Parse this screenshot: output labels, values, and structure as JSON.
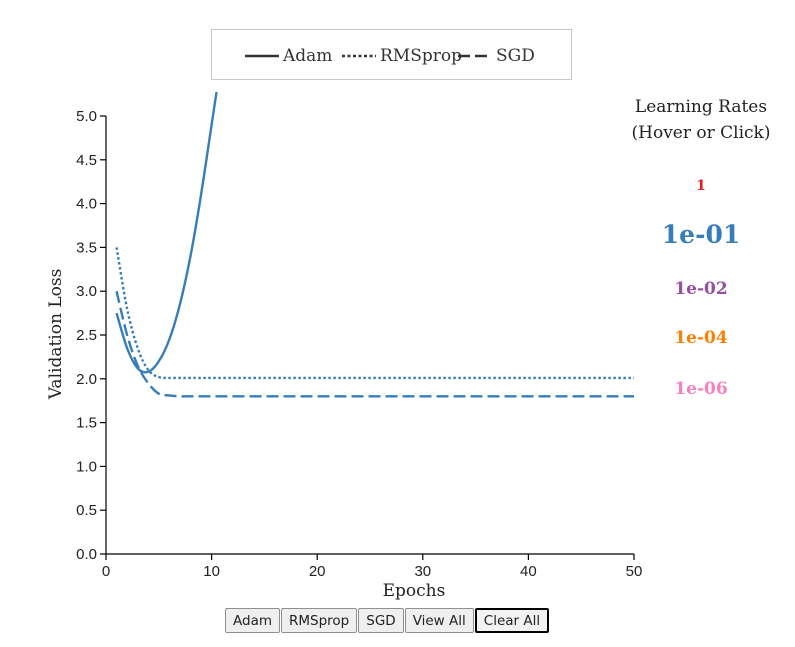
{
  "legend": {
    "items": [
      {
        "label": "Adam",
        "dash": "solid"
      },
      {
        "label": "RMSprop",
        "dash": "dotted"
      },
      {
        "label": "SGD",
        "dash": "dashed"
      }
    ]
  },
  "lr_panel": {
    "title_line1": "Learning Rates",
    "title_line2": "(Hover or Click)",
    "items": [
      {
        "label": "1",
        "color": "#e41a1c",
        "selected": false
      },
      {
        "label": "1e-01",
        "color": "#377eb8",
        "selected": true
      },
      {
        "label": "1e-02",
        "color": "#984ea3",
        "selected": false
      },
      {
        "label": "1e-04",
        "color": "#ff7f00",
        "selected": false
      },
      {
        "label": "1e-06",
        "color": "#f781bf",
        "selected": false
      }
    ]
  },
  "buttons": [
    {
      "label": "Adam",
      "active": false
    },
    {
      "label": "RMSprop",
      "active": false
    },
    {
      "label": "SGD",
      "active": false
    },
    {
      "label": "View All",
      "active": false
    },
    {
      "label": "Clear All",
      "active": true
    }
  ],
  "chart_data": {
    "type": "line",
    "xlabel": "Epochs",
    "ylabel": "Validation Loss",
    "xlim": [
      0,
      50
    ],
    "ylim": [
      0,
      5
    ],
    "xticks": [
      0,
      10,
      20,
      30,
      40,
      50
    ],
    "yticks": [
      0.0,
      0.5,
      1.0,
      1.5,
      2.0,
      2.5,
      3.0,
      3.5,
      4.0,
      4.5,
      5.0
    ],
    "ytick_labels": [
      "0.0",
      "0.5",
      "1.0",
      "1.5",
      "2.0",
      "2.5",
      "3.0",
      "3.5",
      "4.0",
      "4.5",
      "5.0"
    ],
    "grid": false,
    "legend_position": "top-center",
    "series": [
      {
        "name": "Adam",
        "learning_rate": "1e-01",
        "color": "#377eb8",
        "dash": "solid",
        "x": [
          1,
          2,
          3,
          4,
          5,
          6,
          7,
          8,
          9,
          10,
          10.5
        ],
        "y": [
          2.75,
          2.35,
          2.12,
          2.08,
          2.2,
          2.45,
          2.85,
          3.4,
          4.1,
          4.9,
          5.3
        ]
      },
      {
        "name": "RMSprop",
        "learning_rate": "1e-01",
        "color": "#377eb8",
        "dash": "dotted",
        "x": [
          1,
          2,
          3,
          4,
          5,
          6,
          7,
          8,
          10,
          15,
          20,
          25,
          30,
          35,
          40,
          45,
          50
        ],
        "y": [
          3.5,
          2.8,
          2.35,
          2.1,
          2.02,
          2.01,
          2.01,
          2.01,
          2.01,
          2.01,
          2.01,
          2.01,
          2.01,
          2.01,
          2.01,
          2.01,
          2.01
        ]
      },
      {
        "name": "SGD",
        "learning_rate": "1e-01",
        "color": "#377eb8",
        "dash": "dashed",
        "x": [
          1,
          2,
          3,
          4,
          5,
          6,
          7,
          8,
          10,
          15,
          20,
          25,
          30,
          35,
          40,
          45,
          50
        ],
        "y": [
          3.0,
          2.5,
          2.15,
          1.95,
          1.83,
          1.81,
          1.8,
          1.8,
          1.8,
          1.8,
          1.8,
          1.8,
          1.8,
          1.8,
          1.8,
          1.8,
          1.8
        ]
      }
    ]
  }
}
